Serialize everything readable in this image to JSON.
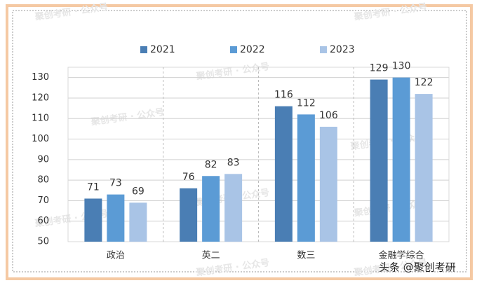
{
  "chart_data": {
    "type": "bar",
    "categories": [
      "政治",
      "英二",
      "数三",
      "金融学综合"
    ],
    "series": [
      {
        "name": "2021",
        "color": "#4a7eb4",
        "values": [
          71,
          76,
          116,
          129
        ]
      },
      {
        "name": "2022",
        "color": "#5b9bd5",
        "values": [
          73,
          82,
          112,
          130
        ]
      },
      {
        "name": "2023",
        "color": "#a9c4e6",
        "values": [
          69,
          83,
          106,
          122
        ]
      }
    ],
    "ylim": [
      50,
      135
    ],
    "yticks": [
      50,
      60,
      70,
      80,
      90,
      100,
      110,
      120,
      130
    ],
    "grid": true,
    "legend": "top",
    "watermark": "聚创考研 · 公众号",
    "footer": "头条 @聚创考研"
  }
}
